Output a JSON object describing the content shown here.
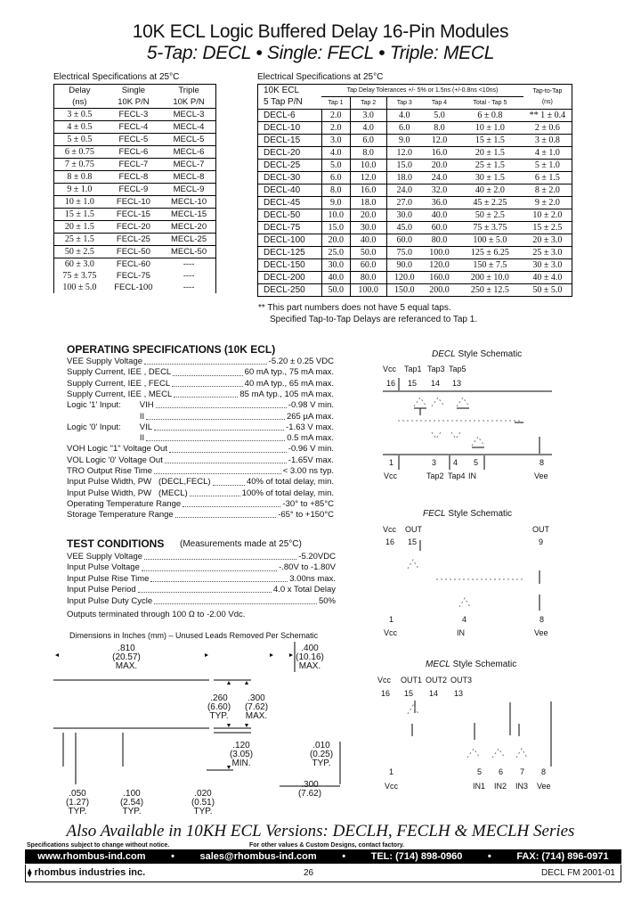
{
  "title": {
    "line1": "10K ECL Logic Buffered Delay 16-Pin Modules",
    "line2": "5-Tap: DECL  •  Single: FECL  •  Triple: MECL"
  },
  "left_table": {
    "caption": "Electrical Specifications at 25°C",
    "headers": [
      [
        "Delay",
        "Single",
        "Triple"
      ],
      [
        "(ns)",
        "10K P/N",
        "10K P/N"
      ]
    ],
    "rows": [
      [
        "3 ± 0.5",
        "FECL-3",
        "MECL-3"
      ],
      [
        "4 ± 0.5",
        "FECL-4",
        "MECL-4"
      ],
      [
        "5 ± 0.5",
        "FECL-5",
        "MECL-5"
      ],
      [
        "6 ± 0.75",
        "FECL-6",
        "MECL-6"
      ],
      [
        "7 ± 0.75",
        "FECL-7",
        "MECL-7"
      ],
      [
        "8 ± 0.8",
        "FECL-8",
        "MECL-8"
      ],
      [
        "9 ± 1.0",
        "FECL-9",
        "MECL-9"
      ],
      [
        "10 ± 1.0",
        "FECL-10",
        "MECL-10"
      ],
      [
        "15 ± 1.5",
        "FECL-15",
        "MECL-15"
      ],
      [
        "20 ± 1.5",
        "FECL-20",
        "MECL-20"
      ],
      [
        "25 ± 1.5",
        "FECL-25",
        "MECL-25"
      ],
      [
        "50 ± 2.5",
        "FECL-50",
        "MECL-50"
      ],
      [
        "60 ± 3.0",
        "FECL-60",
        "----"
      ],
      [
        "75 ± 3.75",
        "FECL-75",
        "----"
      ],
      [
        "100 ± 5.0",
        "FECL-100",
        "----"
      ]
    ]
  },
  "right_table": {
    "caption": "Electrical Specifications at 25°C",
    "pn_header": [
      "10K ECL",
      "5 Tap P/N"
    ],
    "group_header": "Tap Delay Tolerances +/- 5% or 1.5ns (+/-0.8ns <10ns)",
    "tap_headers": [
      "Tap 1",
      "Tap 2",
      "Tap 3",
      "Tap 4",
      "Total - Tap 5"
    ],
    "tap_to_tap_header": [
      "Tap-to-Tap",
      "(ns)"
    ],
    "rows": [
      [
        "DECL-6",
        "2.0",
        "3.0",
        "4.0",
        "5.0",
        "6 ± 0.8",
        "** 1 ± 0.4"
      ],
      [
        "DECL-10",
        "2.0",
        "4.0",
        "6.0",
        "8.0",
        "10 ± 1.0",
        "2 ± 0.6"
      ],
      [
        "DECL-15",
        "3.0",
        "6.0",
        "9.0",
        "12.0",
        "15 ± 1.5",
        "3 ± 0.8"
      ],
      [
        "DECL-20",
        "4.0",
        "8.0",
        "12.0",
        "16.0",
        "20 ± 1.5",
        "4 ± 1.0"
      ],
      [
        "DECL-25",
        "5.0",
        "10.0",
        "15.0",
        "20.0",
        "25 ± 1.5",
        "5 ± 1.0"
      ],
      [
        "DECL-30",
        "6.0",
        "12.0",
        "18.0",
        "24.0",
        "30 ± 1.5",
        "6 ± 1.5"
      ],
      [
        "DECL-40",
        "8.0",
        "16.0",
        "24.0",
        "32.0",
        "40 ± 2.0",
        "8 ± 2.0"
      ],
      [
        "DECL-45",
        "9.0",
        "18.0",
        "27.0",
        "36.0",
        "45 ± 2.25",
        "9 ± 2.0"
      ],
      [
        "DECL-50",
        "10.0",
        "20.0",
        "30.0",
        "40.0",
        "50 ± 2.5",
        "10 ± 2.0"
      ],
      [
        "DECL-75",
        "15.0",
        "30.0",
        "45.0",
        "60.0",
        "75 ± 3.75",
        "15 ± 2.5"
      ],
      [
        "DECL-100",
        "20.0",
        "40.0",
        "60.0",
        "80.0",
        "100 ± 5.0",
        "20 ± 3.0"
      ],
      [
        "DECL-125",
        "25.0",
        "50.0",
        "75.0",
        "100.0",
        "125 ± 6.25",
        "25 ± 3.0"
      ],
      [
        "DECL-150",
        "30.0",
        "60.0",
        "90.0",
        "120.0",
        "150 ± 7.5",
        "30 ± 3.0"
      ],
      [
        "DECL-200",
        "40.0",
        "80.0",
        "120.0",
        "160.0",
        "200 ± 10.0",
        "40 ± 4.0"
      ],
      [
        "DECL-250",
        "50.0",
        "100.0",
        "150.0",
        "200.0",
        "250 ± 12.5",
        "50 ± 5.0"
      ]
    ],
    "notes": [
      "**  This part numbers does not have 5 equal taps.",
      "Specified Tap-to-Tap Delays are referanced to Tap 1."
    ]
  },
  "operating_specs": {
    "heading": "OPERATING SPECIFICATIONS  (10K ECL)",
    "rows": [
      {
        "label": "VEE Supply Voltage",
        "value": "-5.20 ± 0.25 VDC"
      },
      {
        "label": "Supply Current, IEE , DECL",
        "value": "60 mA typ., 75 mA max."
      },
      {
        "label": "Supply Current, IEE , FECL",
        "value": "40 mA typ., 65 mA max."
      },
      {
        "label": "Supply Current, IEE , MECL",
        "value": "85 mA typ., 105 mA max."
      },
      {
        "label": "Logic '1' Input:        VIH",
        "value": "-0.98 V min."
      },
      {
        "label": "                               II",
        "value": "265 µA max."
      },
      {
        "label": "Logic '0' Input:        VIL",
        "value": "-1.63 V max."
      },
      {
        "label": "                               II",
        "value": "0.5 mA max."
      },
      {
        "label": "VOH Logic \"1\" Voltage Out",
        "value": "-0.96 V min."
      },
      {
        "label": "VOL Logic '0' Voltage Out",
        "value": "-1.65V max."
      },
      {
        "label": "TRO Output Rise Time",
        "value": "< 3.00 ns typ."
      },
      {
        "label": "Input Pulse Width, PW   (DECL,FECL)",
        "value": "40% of total delay, min."
      },
      {
        "label": "Input Pulse Width, PW   (MECL)",
        "value": "100% of total delay, min."
      },
      {
        "label": "Operating Temperature Range",
        "value": "-30° to +85°C"
      },
      {
        "label": "Storage Temperature Range",
        "value": "-65° to +150°C"
      }
    ]
  },
  "test_conditions": {
    "heading": "TEST CONDITIONS",
    "subheading": "(Measurements made at 25°C)",
    "rows": [
      {
        "label": "VEE Supply Voltage",
        "value": "-5.20VDC"
      },
      {
        "label": "Input Pulse Voltage",
        "value": "-.80V to -1.80V"
      },
      {
        "label": "Input Pulse Rise Time",
        "value": "3.00ns max."
      },
      {
        "label": "Input Pulse Period",
        "value": "4.0 x Total Delay"
      },
      {
        "label": "Input Pulse Duty Cycle",
        "value": "50%"
      }
    ],
    "outputs_note": "Outputs terminated through 100 Ω to -2.00 Vdc."
  },
  "dimensions": {
    "caption": "Dimensions in Inches (mm) – Unused Leads Removed Per Schematic",
    "labels": {
      "length": ".810\n(20.57)\nMAX.",
      "width": ".400\n(10.16)\nMAX.",
      "height": ".260\n(6.60)\nTYP.",
      "height_max": ".300\n(7.62)\nMAX.",
      "lead_len": ".120\n(3.05)\nMIN.",
      "lead_thick": ".010\n(0.25)\nTYP.",
      "row_spacing": ".300\n(7.62)",
      "end_offset": ".050\n(1.27)\nTYP.",
      "pitch": ".100\n(2.54)\nTYP.",
      "lead_width": ".020\n(0.51)\nTYP."
    }
  },
  "schematics": {
    "decl": {
      "title_italic": "DECL",
      "title_rest": " Style Schematic",
      "top_labels": [
        "Vcc",
        "Tap1",
        "Tap3",
        "Tap5"
      ],
      "top_pins": [
        "16",
        "15",
        "14",
        "13"
      ],
      "bottom_pins": [
        "1",
        "3",
        "4",
        "5",
        "8"
      ],
      "bottom_labels": [
        "Vcc",
        "Tap2",
        "Tap4",
        "IN",
        "Vee"
      ]
    },
    "fecl": {
      "title_italic": "FECL",
      "title_rest": " Style Schematic",
      "top_labels": [
        "Vcc",
        "OUT",
        "OUT"
      ],
      "top_pins": [
        "16",
        "15",
        "9"
      ],
      "bottom_pins": [
        "1",
        "4",
        "8"
      ],
      "bottom_labels": [
        "Vcc",
        "IN",
        "Vee"
      ]
    },
    "mecl": {
      "title_italic": "MECL",
      "title_rest": " Style Schematic",
      "top_labels": [
        "Vcc",
        "OUT1",
        "OUT2",
        "OUT3"
      ],
      "top_pins": [
        "16",
        "15",
        "14",
        "13"
      ],
      "bottom_pins": [
        "1",
        "5",
        "6",
        "7",
        "8"
      ],
      "bottom_labels": [
        "Vcc",
        "IN1",
        "IN2",
        "IN3",
        "Vee"
      ]
    }
  },
  "also_available": "Also Available in 10KH ECL Versions:  DECLH, FECLH & MECLH Series",
  "footer": {
    "disclaimer": "Specifications subject to change without notice.",
    "custom": "For other values & Custom Designs, contact factory.",
    "web": "www.rhombus-ind.com",
    "email": "sales@rhombus-ind.com",
    "tel": "TEL: (714) 898-0960",
    "fax": "FAX: (714) 896-0971",
    "company": "rhombus industries inc.",
    "page": "26",
    "doc_code": "DECL  FM  2001-01"
  }
}
